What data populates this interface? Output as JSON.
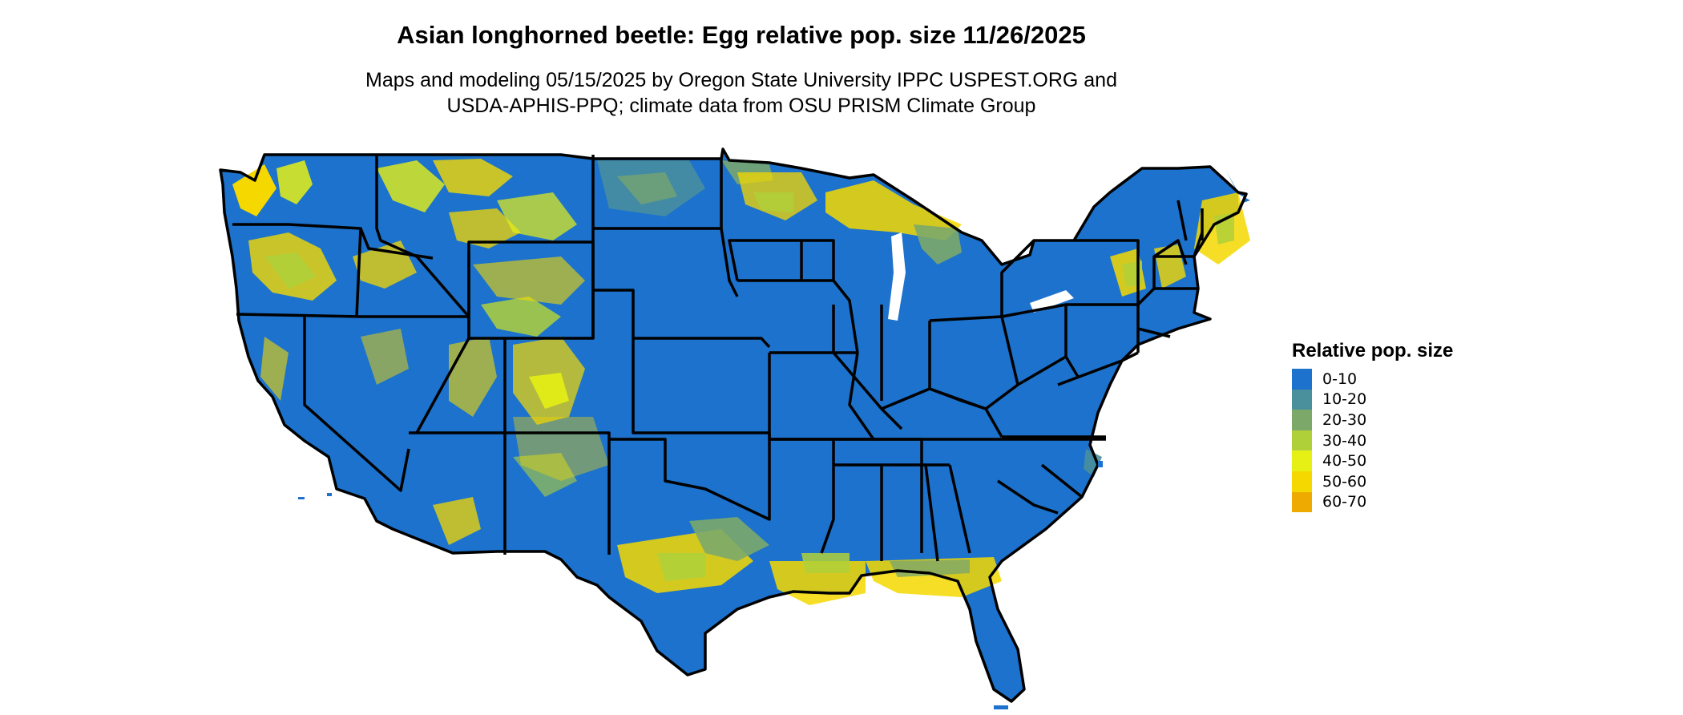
{
  "title": "Asian longhorned beetle: Egg relative pop. size 11/26/2025",
  "subtitle_line1": "Maps and modeling 05/15/2025 by Oregon State University IPPC USPEST.ORG and",
  "subtitle_line2": "USDA-APHIS-PPQ; climate data from OSU PRISM Climate Group",
  "legend": {
    "title": "Relative pop. size",
    "items": [
      {
        "label": "0-10",
        "color": "#1c72cc"
      },
      {
        "label": "10-20",
        "color": "#4a8f9c"
      },
      {
        "label": "20-30",
        "color": "#7ca86a"
      },
      {
        "label": "30-40",
        "color": "#b0d03a"
      },
      {
        "label": "40-50",
        "color": "#e6f015"
      },
      {
        "label": "50-60",
        "color": "#f5d800"
      },
      {
        "label": "60-70",
        "color": "#eeaa00"
      }
    ]
  },
  "colors": {
    "base": "#1c72cc",
    "border": "#000000",
    "background": "#ffffff"
  }
}
